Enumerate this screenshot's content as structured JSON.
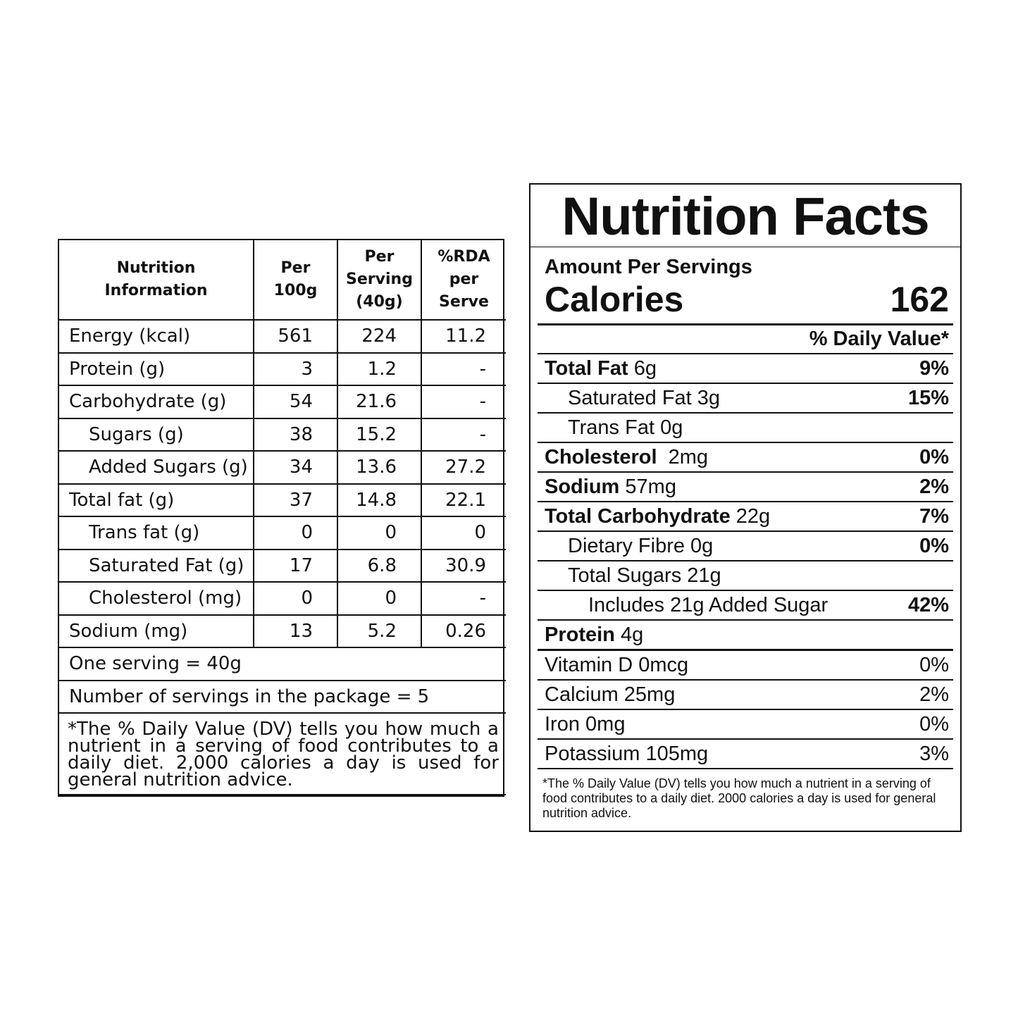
{
  "info_table": {
    "headers": [
      "Nutrition Information",
      "Per 100g",
      "Per Serving (40g)",
      "%RDA per Serve"
    ],
    "header_lines": [
      [
        "Nutrition",
        "Information"
      ],
      [
        "Per",
        "100g"
      ],
      [
        "Per",
        "Serving",
        "(40g)"
      ],
      [
        "%RDA",
        "per",
        "Serve"
      ]
    ],
    "rows": [
      {
        "nutrient": "Energy (kcal)",
        "per100": "561",
        "serving": "224",
        "rda": "11.2"
      },
      {
        "nutrient": "Protein (g)",
        "per100": "3",
        "serving": "1.2",
        "rda": "-"
      },
      {
        "nutrient": "Carbohydrate (g)",
        "per100": "54",
        "serving": "21.6",
        "rda": "-"
      },
      {
        "nutrient": "Sugars (g)",
        "per100": "38",
        "serving": "15.2",
        "rda": "-"
      },
      {
        "nutrient": "Added Sugars (g)",
        "per100": "34",
        "serving": "13.6",
        "rda": "27.2"
      },
      {
        "nutrient": "Total fat (g)",
        "per100": "37",
        "serving": "14.8",
        "rda": "22.1"
      },
      {
        "nutrient": "Trans fat (g)",
        "per100": "0",
        "serving": "0",
        "rda": "0"
      },
      {
        "nutrient": "Saturated Fat (g)",
        "per100": "17",
        "serving": "6.8",
        "rda": "30.9"
      },
      {
        "nutrient": "Cholesterol (mg)",
        "per100": "0",
        "serving": "0",
        "rda": "-"
      },
      {
        "nutrient": "Sodium (mg)",
        "per100": "13",
        "serving": "5.2",
        "rda": "0.26"
      }
    ],
    "serving_line": "One serving = 40g",
    "servings_per_package": "Number of servings in the package = 5",
    "footnote": "*The % Daily Value (DV) tells you how much a nutrient in a serving of food contributes to a daily diet. 2,000 calories a day is used for general nutrition advice."
  },
  "facts": {
    "title": "Nutrition Facts",
    "amount_label": "Amount Per Servings",
    "calories_label": "Calories",
    "calories_value": "162",
    "dv_header": "% Daily Value*",
    "rows": [
      {
        "label_bold": "Total Fat",
        "label": " 6g",
        "pct": "9%"
      },
      {
        "label_bold": "",
        "label": "Saturated Fat 3g",
        "pct": "15%"
      },
      {
        "label_bold": "",
        "label": "Trans Fat 0g",
        "pct": ""
      },
      {
        "label_bold": "Cholesterol",
        "label": "  2mg",
        "pct": "0%"
      },
      {
        "label_bold": "Sodium",
        "label": " 57mg",
        "pct": "2%"
      },
      {
        "label_bold": "Total Carbohydrate",
        "label": " 22g",
        "pct": "7%"
      },
      {
        "label_bold": "",
        "label": "Dietary Fibre 0g",
        "pct": "0%"
      },
      {
        "label_bold": "",
        "label": "Total Sugars 21g",
        "pct": ""
      },
      {
        "label_bold": "",
        "label": "Includes 21g Added Sugar",
        "pct": "42%"
      },
      {
        "label_bold": "Protein",
        "label": " 4g",
        "pct": ""
      },
      {
        "label_bold": "",
        "label": "Vitamin D 0mcg",
        "pct": "0%"
      },
      {
        "label_bold": "",
        "label": "Calcium 25mg",
        "pct": "2%"
      },
      {
        "label_bold": "",
        "label": "Iron 0mg",
        "pct": "0%"
      },
      {
        "label_bold": "",
        "label": "Potassium 105mg",
        "pct": "3%"
      }
    ],
    "footnote": "*The % Daily Value (DV) tells you how much a nutrient in a serving of food contributes to a daily diet. 2000 calories a day is used for general nutrition advice."
  }
}
